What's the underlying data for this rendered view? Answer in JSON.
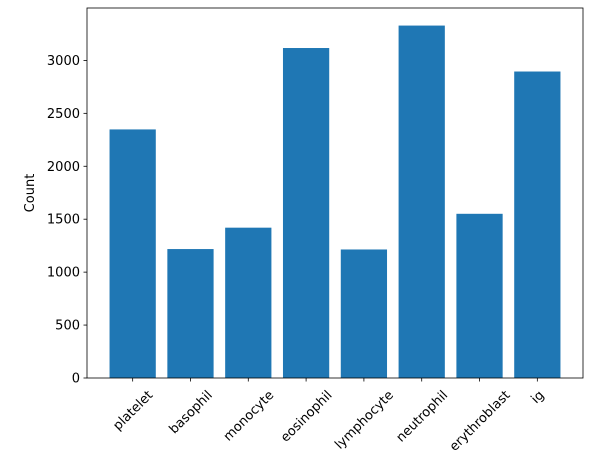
{
  "chart_data": {
    "type": "bar",
    "ylabel": "Count",
    "categories": [
      "platelet",
      "basophil",
      "monocyte",
      "eosinophil",
      "lymphocyte",
      "neutrophil",
      "erythroblast",
      "ig"
    ],
    "values": [
      2348,
      1218,
      1420,
      3117,
      1214,
      3329,
      1551,
      2895
    ],
    "color": "#1f77b4",
    "ylim": [
      0,
      3495
    ],
    "yticks": [
      0,
      500,
      1000,
      1500,
      2000,
      2500,
      3000
    ],
    "grid": false
  }
}
